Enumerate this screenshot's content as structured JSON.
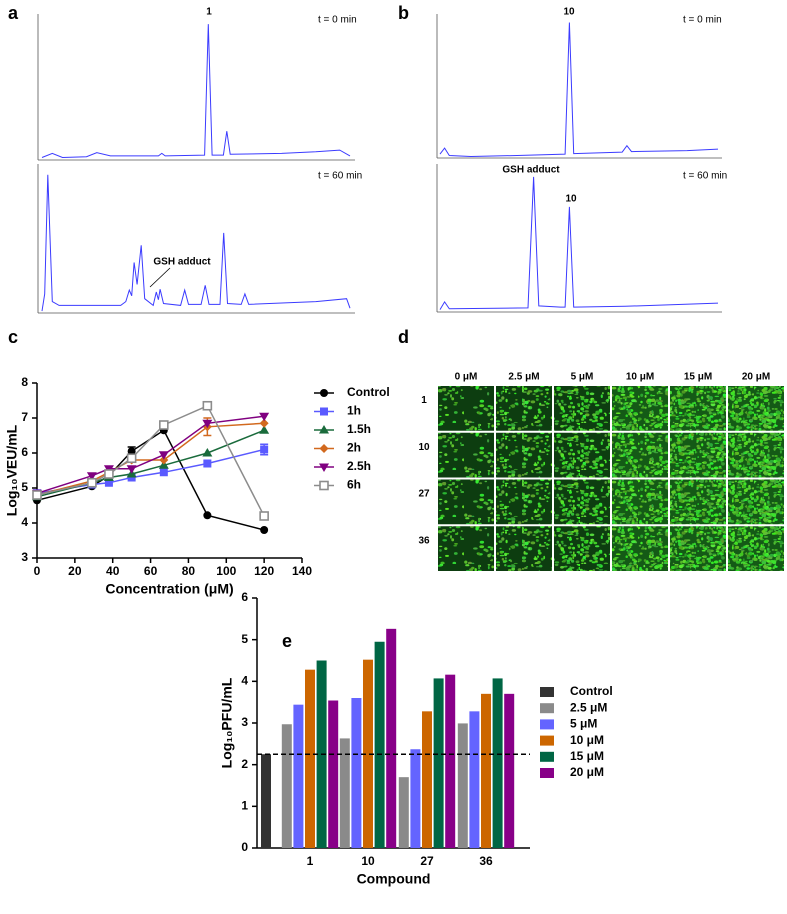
{
  "panel_labels": [
    "a",
    "b",
    "c",
    "d",
    "e"
  ],
  "chart_data": [
    {
      "type": "chromatogram",
      "color": "#3b3bff",
      "xlim": [
        0,
        9
      ],
      "ylim": [
        0,
        170000
      ],
      "x": [
        0,
        0.3,
        0.6,
        1.3,
        1.6,
        2.0,
        3.4,
        3.5,
        3.6,
        4.75,
        4.86,
        4.97,
        5.3,
        5.4,
        5.5,
        7.0,
        8.0,
        8.7,
        9.0
      ],
      "values": [
        3000,
        8000,
        3000,
        4000,
        9000,
        5000,
        5000,
        8000,
        5000,
        6000,
        165000,
        6000,
        6000,
        35000,
        7000,
        8000,
        10000,
        12000,
        5000
      ],
      "annotations": [
        "1",
        "t = 0 min"
      ]
    },
    {
      "type": "chromatogram",
      "color": "#3b3bff",
      "xlim": [
        0,
        9
      ],
      "ylim": [
        0,
        150000
      ],
      "x": [
        0,
        0.08,
        0.17,
        0.3,
        0.5,
        2.3,
        2.45,
        2.55,
        2.62,
        2.69,
        2.78,
        2.9,
        3.0,
        3.25,
        3.34,
        3.4,
        3.45,
        3.55,
        4.05,
        4.17,
        4.28,
        4.65,
        4.77,
        4.88,
        5.2,
        5.31,
        5.42,
        5.82,
        5.93,
        6.04,
        8.0,
        8.9,
        9.0
      ],
      "values": [
        2000,
        20000,
        145000,
        12000,
        8000,
        8000,
        12000,
        24000,
        18000,
        53000,
        30000,
        71000,
        15000,
        8000,
        22000,
        14000,
        25000,
        10000,
        8000,
        24000,
        9000,
        9000,
        29000,
        9000,
        9000,
        84000,
        10000,
        9000,
        20000,
        9000,
        12000,
        15000,
        5000
      ],
      "annotations": [
        "GSH adduct",
        "t = 60 min"
      ]
    },
    {
      "type": "chromatogram",
      "color": "#3b3bff",
      "xlim": [
        0,
        9
      ],
      "ylim": [
        0,
        280000
      ],
      "x": [
        0,
        0.15,
        0.3,
        1.0,
        2.5,
        4.05,
        4.19,
        4.33,
        5.9,
        6.05,
        6.2,
        8.0,
        9.0
      ],
      "values": [
        8000,
        20000,
        5000,
        3000,
        5000,
        8000,
        275000,
        9000,
        12000,
        25000,
        13000,
        15000,
        18000
      ],
      "annotations": [
        "10",
        "t = 0 min"
      ]
    },
    {
      "type": "chromatogram",
      "color": "#3b3bff",
      "xlim": [
        0,
        9
      ],
      "ylim": [
        0,
        350000
      ],
      "x": [
        0,
        0.15,
        0.3,
        2.85,
        3.03,
        3.2,
        3.9,
        4.05,
        4.19,
        4.33,
        6.0,
        9.0
      ],
      "values": [
        6000,
        25000,
        8000,
        10000,
        333000,
        15000,
        12000,
        12000,
        259000,
        12000,
        14000,
        22000
      ],
      "annotations": [
        "GSH adduct",
        "10",
        "t = 60 min"
      ]
    },
    {
      "type": "line",
      "xlabel": "Concentration (μM)",
      "ylabel": "Log₁₀VEU/mL",
      "x": [
        0,
        29,
        38,
        50,
        67,
        90,
        120
      ],
      "xlim": [
        0,
        140
      ],
      "xticks": [
        0,
        20,
        40,
        60,
        80,
        100,
        120,
        140
      ],
      "ylim": [
        3,
        8
      ],
      "yticks": [
        3,
        4,
        5,
        6,
        7,
        8
      ],
      "series": [
        {
          "name": "Control",
          "color": "#000000",
          "marker": "circle",
          "values": [
            4.65,
            5.05,
            5.35,
            6.05,
            6.65,
            4.22,
            3.8
          ],
          "errors": [
            null,
            null,
            null,
            0.12,
            null,
            null,
            null
          ]
        },
        {
          "name": "1h",
          "color": "#5a5aff",
          "marker": "square",
          "values": [
            4.85,
            5.1,
            5.15,
            5.3,
            5.45,
            5.7,
            6.1
          ],
          "errors": [
            null,
            null,
            null,
            null,
            null,
            null,
            0.15
          ]
        },
        {
          "name": "1.5h",
          "color": "#1a6b3c",
          "marker": "triangle",
          "values": [
            4.75,
            5.15,
            5.3,
            5.4,
            5.65,
            6.0,
            6.65
          ],
          "errors": [
            null,
            null,
            null,
            null,
            null,
            null,
            null
          ]
        },
        {
          "name": "2h",
          "color": "#d2691e",
          "marker": "diamond",
          "values": [
            4.8,
            5.2,
            5.45,
            5.8,
            5.8,
            6.75,
            6.85
          ],
          "errors": [
            null,
            null,
            null,
            null,
            null,
            0.25,
            null
          ]
        },
        {
          "name": "2.5h",
          "color": "#800080",
          "marker": "triangle-down",
          "values": [
            4.85,
            5.35,
            5.55,
            5.55,
            5.95,
            6.85,
            7.05
          ],
          "errors": [
            null,
            null,
            null,
            null,
            null,
            null,
            null
          ]
        },
        {
          "name": "6h",
          "color": "#8c8c8c",
          "marker": "open-square",
          "values": [
            4.8,
            5.15,
            5.4,
            5.85,
            6.8,
            7.35,
            4.2
          ],
          "errors": [
            null,
            null,
            null,
            null,
            null,
            0.1,
            null
          ]
        }
      ]
    },
    {
      "type": "image-grid",
      "columns": [
        "0 μM",
        "2.5 μM",
        "5 μM",
        "10 μM",
        "15 μM",
        "20 μM"
      ],
      "rows": [
        "1",
        "10",
        "27",
        "36"
      ]
    },
    {
      "type": "bar",
      "xlabel": "Compound",
      "ylabel": "Log₁₀PFU/mL",
      "categories": [
        null,
        "1",
        "10",
        "27",
        "36"
      ],
      "ylim": [
        0,
        6
      ],
      "yticks": [
        0,
        1,
        2,
        3,
        4,
        5,
        6
      ],
      "reference_line": 2.25,
      "series": [
        {
          "name": "Control",
          "color": "#333333",
          "values": [
            2.25,
            null,
            null,
            null,
            null
          ]
        },
        {
          "name": "2.5 μM",
          "color": "#8a8a8a",
          "values": [
            null,
            2.97,
            2.63,
            1.7,
            2.99
          ]
        },
        {
          "name": "5 μM",
          "color": "#6464ff",
          "values": [
            null,
            3.44,
            3.6,
            2.37,
            3.28
          ]
        },
        {
          "name": "10 μM",
          "color": "#cc6600",
          "values": [
            null,
            4.28,
            4.52,
            3.28,
            3.7
          ]
        },
        {
          "name": "15 μM",
          "color": "#006644",
          "values": [
            null,
            4.5,
            4.95,
            4.07,
            4.07
          ]
        },
        {
          "name": "20 μM",
          "color": "#880088",
          "values": [
            null,
            3.54,
            5.26,
            4.16,
            3.7
          ]
        }
      ]
    }
  ]
}
